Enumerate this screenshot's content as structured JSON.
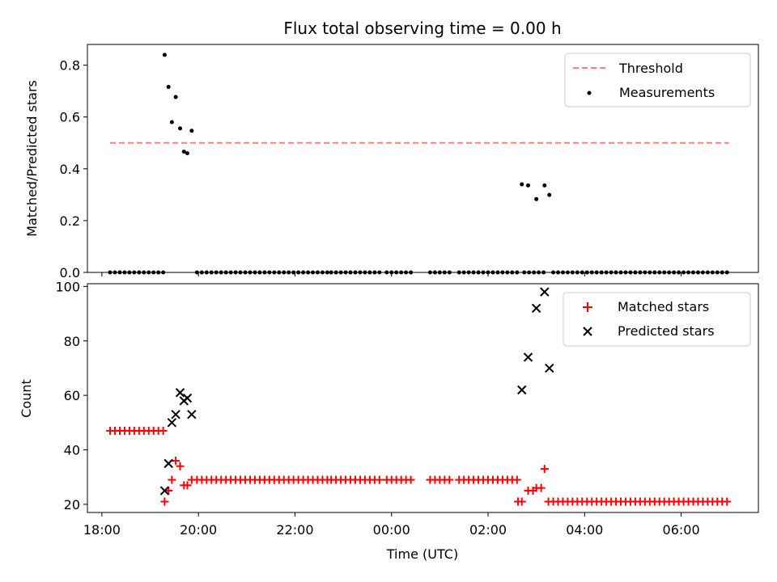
{
  "chart_data": [
    {
      "type": "scatter",
      "title": "Flux total observing time = 0.00 h",
      "xlabel": "",
      "ylabel": "Matched/Predicted stars",
      "x_axis": "time",
      "xlim_hours": [
        17.7,
        31.6
      ],
      "ylim": [
        0,
        0.88
      ],
      "yticks": [
        0.0,
        0.2,
        0.4,
        0.6,
        0.8
      ],
      "ytick_labels": [
        "0.0",
        "0.2",
        "0.4",
        "0.6",
        "0.8"
      ],
      "xtick_labels": [],
      "legend": {
        "placement": "top-right",
        "entries": [
          "Threshold",
          "Measurements"
        ]
      },
      "series": [
        {
          "name": "Threshold",
          "kind": "line",
          "color": "#ff7f7f",
          "x": [
            18.17,
            30.99
          ],
          "y": [
            0.5,
            0.5
          ]
        },
        {
          "name": "Measurements",
          "kind": "scatter",
          "color": "#000000",
          "x": [
            19.3,
            19.38,
            19.45,
            19.53,
            19.62,
            19.7,
            19.77,
            19.86,
            26.7,
            26.83,
            27.0,
            27.17,
            27.27
          ],
          "y": [
            0.84,
            0.716,
            0.58,
            0.677,
            0.556,
            0.466,
            0.46,
            0.547,
            0.34,
            0.336,
            0.283,
            0.336,
            0.299
          ]
        },
        {
          "name": "",
          "kind": "scatter",
          "color": "#000000",
          "ranges": [
            {
              "start": 18.17,
              "end": 19.27,
              "step": 0.1
            },
            {
              "start": 19.97,
              "end": 22.7,
              "step": 0.1
            },
            {
              "start": 22.75,
              "end": 23.8,
              "step": 0.1
            },
            {
              "start": 23.9,
              "end": 24.4,
              "step": 0.1
            },
            {
              "start": 24.8,
              "end": 25.2,
              "step": 0.1
            },
            {
              "start": 25.4,
              "end": 26.6,
              "step": 0.1
            },
            {
              "start": 26.75,
              "end": 27.2,
              "step": 0.1
            },
            {
              "start": 27.35,
              "end": 30.99,
              "step": 0.1
            }
          ],
          "y_all": 0
        }
      ]
    },
    {
      "type": "scatter",
      "title": "",
      "xlabel": "Time (UTC)",
      "ylabel": "Count",
      "x_axis": "time",
      "xlim_hours": [
        17.7,
        31.6
      ],
      "ylim": [
        17,
        101
      ],
      "yticks": [
        20,
        40,
        60,
        80,
        100
      ],
      "ytick_labels": [
        "20",
        "40",
        "60",
        "80",
        "100"
      ],
      "xtick_hours": [
        18,
        20,
        22,
        24,
        26,
        28,
        30
      ],
      "xtick_labels": [
        "18:00",
        "20:00",
        "22:00",
        "00:00",
        "02:00",
        "04:00",
        "06:00"
      ],
      "legend": {
        "placement": "top-right",
        "entries": [
          "Matched stars",
          "Predicted stars"
        ]
      },
      "series": [
        {
          "name": "Matched stars",
          "kind": "plus",
          "color": "#ff0000",
          "points": [
            [
              19.3,
              21
            ],
            [
              19.38,
              25
            ],
            [
              19.45,
              29
            ],
            [
              19.53,
              36
            ],
            [
              19.62,
              34
            ],
            [
              19.7,
              27
            ],
            [
              19.77,
              27
            ],
            [
              19.86,
              29
            ],
            [
              26.62,
              21
            ],
            [
              26.7,
              21
            ],
            [
              26.83,
              25
            ],
            [
              26.93,
              25
            ],
            [
              27.0,
              26
            ],
            [
              27.1,
              26
            ],
            [
              27.17,
              33
            ]
          ],
          "ranges": [
            {
              "start": 18.17,
              "end": 19.27,
              "step": 0.1,
              "y": 47
            },
            {
              "start": 19.97,
              "end": 22.7,
              "step": 0.1,
              "y": 29
            },
            {
              "start": 22.75,
              "end": 23.8,
              "step": 0.1,
              "y": 29
            },
            {
              "start": 23.9,
              "end": 24.4,
              "step": 0.1,
              "y": 29
            },
            {
              "start": 24.8,
              "end": 25.2,
              "step": 0.1,
              "y": 29
            },
            {
              "start": 25.4,
              "end": 26.6,
              "step": 0.1,
              "y": 29
            },
            {
              "start": 27.25,
              "end": 30.99,
              "step": 0.1,
              "y": 21
            }
          ]
        },
        {
          "name": "Predicted stars",
          "kind": "x",
          "color": "#000000",
          "points": [
            [
              19.3,
              25
            ],
            [
              19.38,
              35
            ],
            [
              19.45,
              50
            ],
            [
              19.53,
              53
            ],
            [
              19.62,
              61
            ],
            [
              19.7,
              58
            ],
            [
              19.77,
              59
            ],
            [
              19.86,
              53
            ],
            [
              26.7,
              62
            ],
            [
              26.83,
              74
            ],
            [
              27.0,
              92
            ],
            [
              27.17,
              98
            ],
            [
              27.27,
              70
            ]
          ]
        }
      ]
    }
  ]
}
